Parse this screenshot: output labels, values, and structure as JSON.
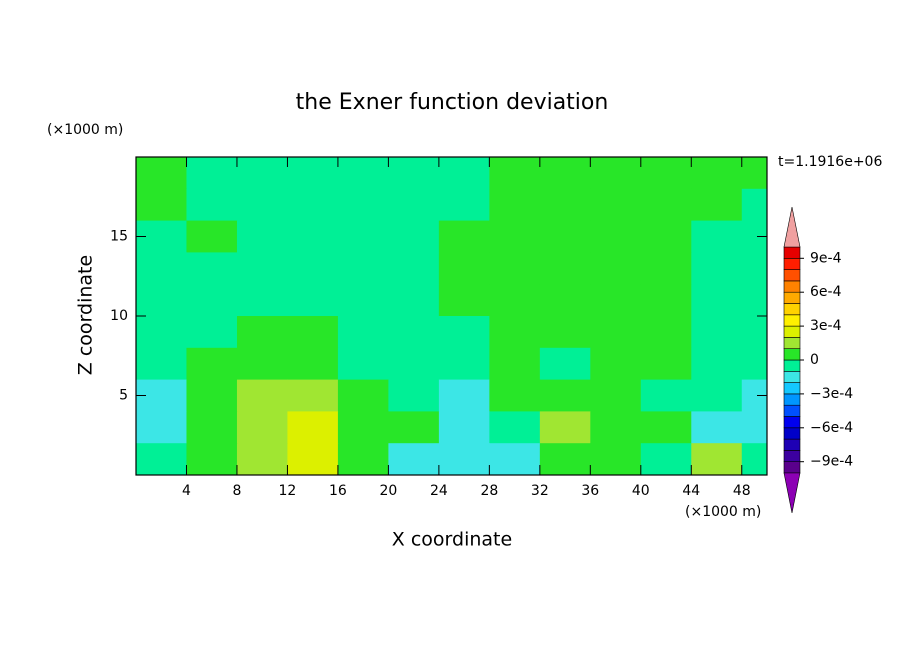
{
  "chart_data": {
    "type": "contour",
    "title": "the Exner function deviation",
    "x_label": "X coordinate",
    "y_label": "Z coordinate",
    "x_unit": "(×1000 m)",
    "y_unit": "(×1000 m)",
    "time_label": "t=1.1916e+06",
    "xlim": [
      0,
      50
    ],
    "ylim": [
      0,
      20
    ],
    "xticks": [
      4,
      8,
      12,
      16,
      20,
      24,
      28,
      32,
      36,
      40,
      44,
      48
    ],
    "yticks": [
      5,
      10,
      15
    ],
    "x": [
      2,
      6,
      10,
      14,
      18,
      22,
      26,
      30,
      34,
      38,
      42,
      46,
      50
    ],
    "y": [
      19,
      17,
      15,
      13,
      11,
      9,
      7,
      5,
      3,
      1
    ],
    "z": [
      [
        5e-05,
        -5e-05,
        -5e-05,
        -5e-05,
        -5e-05,
        -5e-05,
        -5e-05,
        5e-05,
        5e-05,
        5e-05,
        5e-05,
        5e-05,
        5e-05
      ],
      [
        5e-05,
        -5e-05,
        -5e-05,
        -5e-05,
        -5e-05,
        -5e-05,
        -5e-05,
        5e-05,
        5e-05,
        5e-05,
        5e-05,
        5e-05,
        -5e-05
      ],
      [
        -5e-05,
        5e-05,
        -5e-05,
        -5e-05,
        -5e-05,
        -5e-05,
        5e-05,
        5e-05,
        5e-05,
        5e-05,
        5e-05,
        -5e-05,
        -5e-05
      ],
      [
        -5e-05,
        -5e-05,
        -5e-05,
        -5e-05,
        -5e-05,
        -5e-05,
        5e-05,
        5e-05,
        5e-05,
        5e-05,
        5e-05,
        -5e-05,
        -5e-05
      ],
      [
        -5e-05,
        -5e-05,
        -5e-05,
        -5e-05,
        -5e-05,
        -5e-05,
        5e-05,
        5e-05,
        5e-05,
        5e-05,
        5e-05,
        -5e-05,
        -5e-05
      ],
      [
        -5e-05,
        -5e-05,
        5e-05,
        5e-05,
        -5e-05,
        -5e-05,
        -5e-05,
        5e-05,
        5e-05,
        5e-05,
        5e-05,
        -5e-05,
        -5e-05
      ],
      [
        -5e-05,
        5e-05,
        5e-05,
        5e-05,
        -5e-05,
        -5e-05,
        -5e-05,
        5e-05,
        -5e-05,
        5e-05,
        5e-05,
        -5e-05,
        -5e-05
      ],
      [
        -0.00015,
        5e-05,
        0.00015,
        0.00015,
        5e-05,
        -5e-05,
        -0.00015,
        5e-05,
        5e-05,
        5e-05,
        -5e-05,
        -5e-05,
        -0.00015
      ],
      [
        -0.00015,
        5e-05,
        0.00015,
        0.00025,
        5e-05,
        5e-05,
        -0.00015,
        -5e-05,
        0.00015,
        5e-05,
        5e-05,
        -0.00015,
        -0.00015
      ],
      [
        -5e-05,
        5e-05,
        0.00015,
        0.00025,
        5e-05,
        -0.00015,
        -0.00015,
        -0.00015,
        5e-05,
        5e-05,
        -5e-05,
        0.00015,
        -5e-05
      ]
    ],
    "clim": [
      -0.001,
      0.001
    ],
    "colors": [
      "#5a008c",
      "#3c00a0",
      "#1e00b4",
      "#0000c8",
      "#0000f0",
      "#0050ff",
      "#0096ff",
      "#14c8ff",
      "#3ce6e6",
      "#00f096",
      "#28e628",
      "#a0e632",
      "#dcf000",
      "#fff000",
      "#ffd200",
      "#ffaa00",
      "#ff8200",
      "#ff5000",
      "#ff1e00",
      "#e60000"
    ],
    "extend_colors": [
      "#8c00b4",
      "#f0a0a0"
    ],
    "cticks": [
      {
        "value": 0.0009,
        "label": "9e-4"
      },
      {
        "value": 0.0006,
        "label": "6e-4"
      },
      {
        "value": 0.0003,
        "label": "3e-4"
      },
      0,
      {
        "value": -0.0003,
        "label": "−3e-4"
      },
      {
        "value": -0.0006,
        "label": "−6e-4"
      },
      {
        "value": -0.0009,
        "label": "−9e-4"
      }
    ]
  }
}
